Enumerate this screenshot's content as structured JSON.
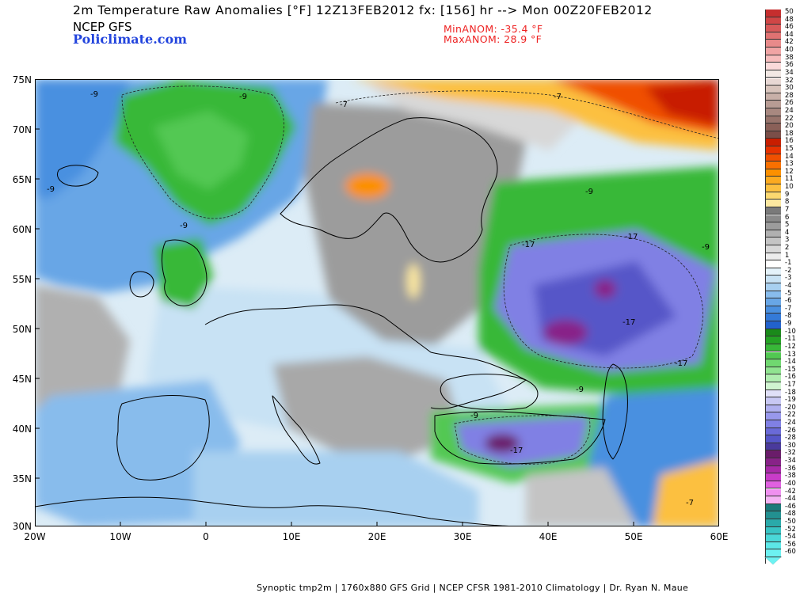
{
  "header": {
    "title": "2m Temperature Raw Anomalies [°F] 12Z13FEB2012 fx: [156] hr --> Mon 00Z20FEB2012",
    "model": "NCEP GFS",
    "brand": "Policlimate.com",
    "min_anom": "MinANOM: -35.4 °F",
    "max_anom": "MaxANOM: 28.9 °F"
  },
  "axes": {
    "lat_labels": [
      "75N",
      "70N",
      "65N",
      "60N",
      "55N",
      "50N",
      "45N",
      "40N",
      "35N",
      "30N"
    ],
    "lon_labels": [
      "20W",
      "10W",
      "0",
      "10E",
      "20E",
      "30E",
      "40E",
      "50E",
      "60E"
    ]
  },
  "contour_labels": [
    "-9",
    "-9",
    "-9",
    "-9",
    "-9",
    "-7",
    "-7",
    "-17",
    "-17",
    "-17",
    "-17",
    "-9",
    "-9",
    "-17",
    "-9",
    "-7"
  ],
  "colorbar": {
    "levels": [
      "50",
      "48",
      "46",
      "44",
      "42",
      "40",
      "38",
      "36",
      "34",
      "32",
      "30",
      "28",
      "26",
      "24",
      "22",
      "20",
      "18",
      "16",
      "15",
      "14",
      "13",
      "12",
      "11",
      "10",
      "9",
      "8",
      "7",
      "6",
      "5",
      "4",
      "3",
      "2",
      "1",
      "-1",
      "-2",
      "-3",
      "-4",
      "-5",
      "-6",
      "-7",
      "-8",
      "-9",
      "-10",
      "-11",
      "-12",
      "-13",
      "-14",
      "-15",
      "-16",
      "-17",
      "-18",
      "-19",
      "-20",
      "-22",
      "-24",
      "-26",
      "-28",
      "-30",
      "-32",
      "-34",
      "-36",
      "-38",
      "-40",
      "-42",
      "-44",
      "-46",
      "-48",
      "-50",
      "-52",
      "-54",
      "-56",
      "-60"
    ],
    "colors": [
      "#c62e2e",
      "#d04646",
      "#d85a5a",
      "#e07272",
      "#e88a8a",
      "#f0a4a4",
      "#f6bcbc",
      "#fadada",
      "#f2e8e4",
      "#e8d8d4",
      "#d8c4bc",
      "#c8b0a8",
      "#b89c94",
      "#a88880",
      "#98746c",
      "#8a6058",
      "#7a4e48",
      "#c81e00",
      "#e63200",
      "#f05000",
      "#f87000",
      "#fc9000",
      "#fcaa20",
      "#fcc040",
      "#fcd870",
      "#fce8a0",
      "#7a7a7a",
      "#8a8a8a",
      "#9c9c9c",
      "#b0b0b0",
      "#c4c4c4",
      "#d8d8d8",
      "#ececec",
      "#ffffff",
      "#e4f2fa",
      "#c8e2f4",
      "#a8d0f0",
      "#88bcec",
      "#68a6e6",
      "#4a90e0",
      "#347ad8",
      "#2262cc",
      "#1a8a1a",
      "#24a224",
      "#38b838",
      "#52c852",
      "#70d870",
      "#90e490",
      "#b0eeb0",
      "#d0f4d0",
      "#e0e0f8",
      "#c8c8f4",
      "#b0b0f0",
      "#9898ec",
      "#8080e4",
      "#6a6ad8",
      "#5656c8",
      "#4a3a9c",
      "#6a1c6a",
      "#882288",
      "#a82aa8",
      "#c83cc8",
      "#e060e0",
      "#f090f0",
      "#f4b4f4",
      "#1a7a7a",
      "#229090",
      "#2aaaaa",
      "#38c4c4",
      "#4ad8d8",
      "#5ce8e8",
      "#6df2f2"
    ]
  },
  "footer": "Synoptic tmp2m | 1760x880 GFS Grid | NCEP CFSR 1981-2010 Climatology | Dr. Ryan N. Maue"
}
